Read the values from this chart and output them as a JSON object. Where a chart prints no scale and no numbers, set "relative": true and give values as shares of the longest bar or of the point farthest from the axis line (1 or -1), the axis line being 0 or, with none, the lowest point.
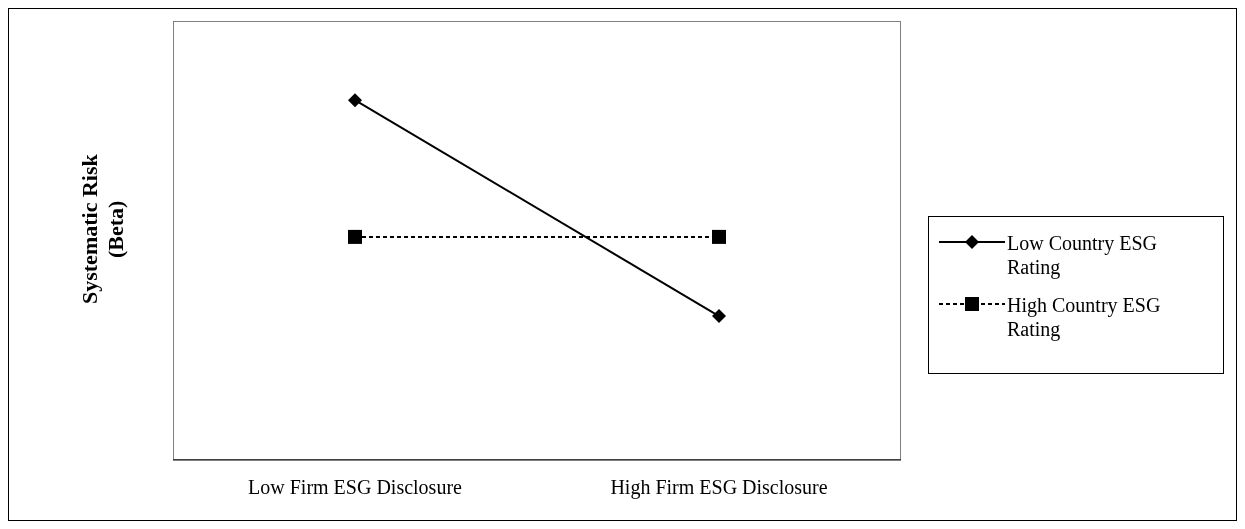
{
  "chart_data": {
    "type": "line",
    "relative": true,
    "ylabel": "Systematic Risk (Beta)",
    "categories": [
      "Low Firm ESG Disclosure",
      "High Firm ESG Disclosure"
    ],
    "series": [
      {
        "name": "Low Country ESG Rating",
        "color": "#000000",
        "values": [
          1,
          0.4
        ],
        "marker": "diamond",
        "line_style": "solid"
      },
      {
        "name": "High Country ESG Rating",
        "color": "#000000",
        "values": [
          0.62,
          0.62
        ],
        "marker": "square",
        "line_style": "dashed"
      }
    ],
    "legend": "right"
  }
}
